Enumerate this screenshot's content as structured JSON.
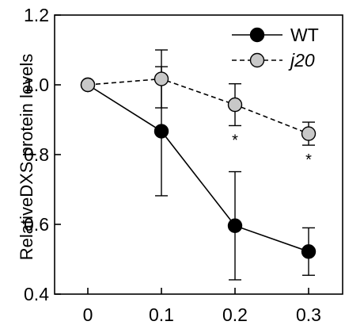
{
  "chart_data": {
    "type": "line",
    "title": "",
    "xlabel": "",
    "ylabel": "RelativeDXS protein levels",
    "xlim": [
      0,
      0.3
    ],
    "ylim": [
      0.4,
      1.2
    ],
    "x_ticks": [
      "0",
      "0.1",
      "0.2",
      "0.3"
    ],
    "y_ticks": [
      "0.4",
      "0.6",
      "0.8",
      "1.0",
      "1.2"
    ],
    "grid": false,
    "legend_position": "top-right",
    "series": [
      {
        "name": "WT",
        "line_style": "solid",
        "marker_color": "#000000",
        "x": [
          0,
          0.1,
          0.2,
          0.3
        ],
        "y": [
          1.0,
          0.867,
          0.596,
          0.522
        ],
        "error": [
          0,
          0.185,
          0.155,
          0.068
        ]
      },
      {
        "name": "j20",
        "line_style": "dashed",
        "marker_color": "#c8c8c8",
        "x": [
          0,
          0.1,
          0.2,
          0.3
        ],
        "y": [
          1.0,
          1.017,
          0.943,
          0.86
        ],
        "error": [
          0,
          0.083,
          0.06,
          0.033
        ]
      }
    ],
    "annotations": [
      {
        "text": "*",
        "x": 0.2,
        "series": "j20"
      },
      {
        "text": "*",
        "x": 0.3,
        "series": "j20"
      }
    ]
  }
}
